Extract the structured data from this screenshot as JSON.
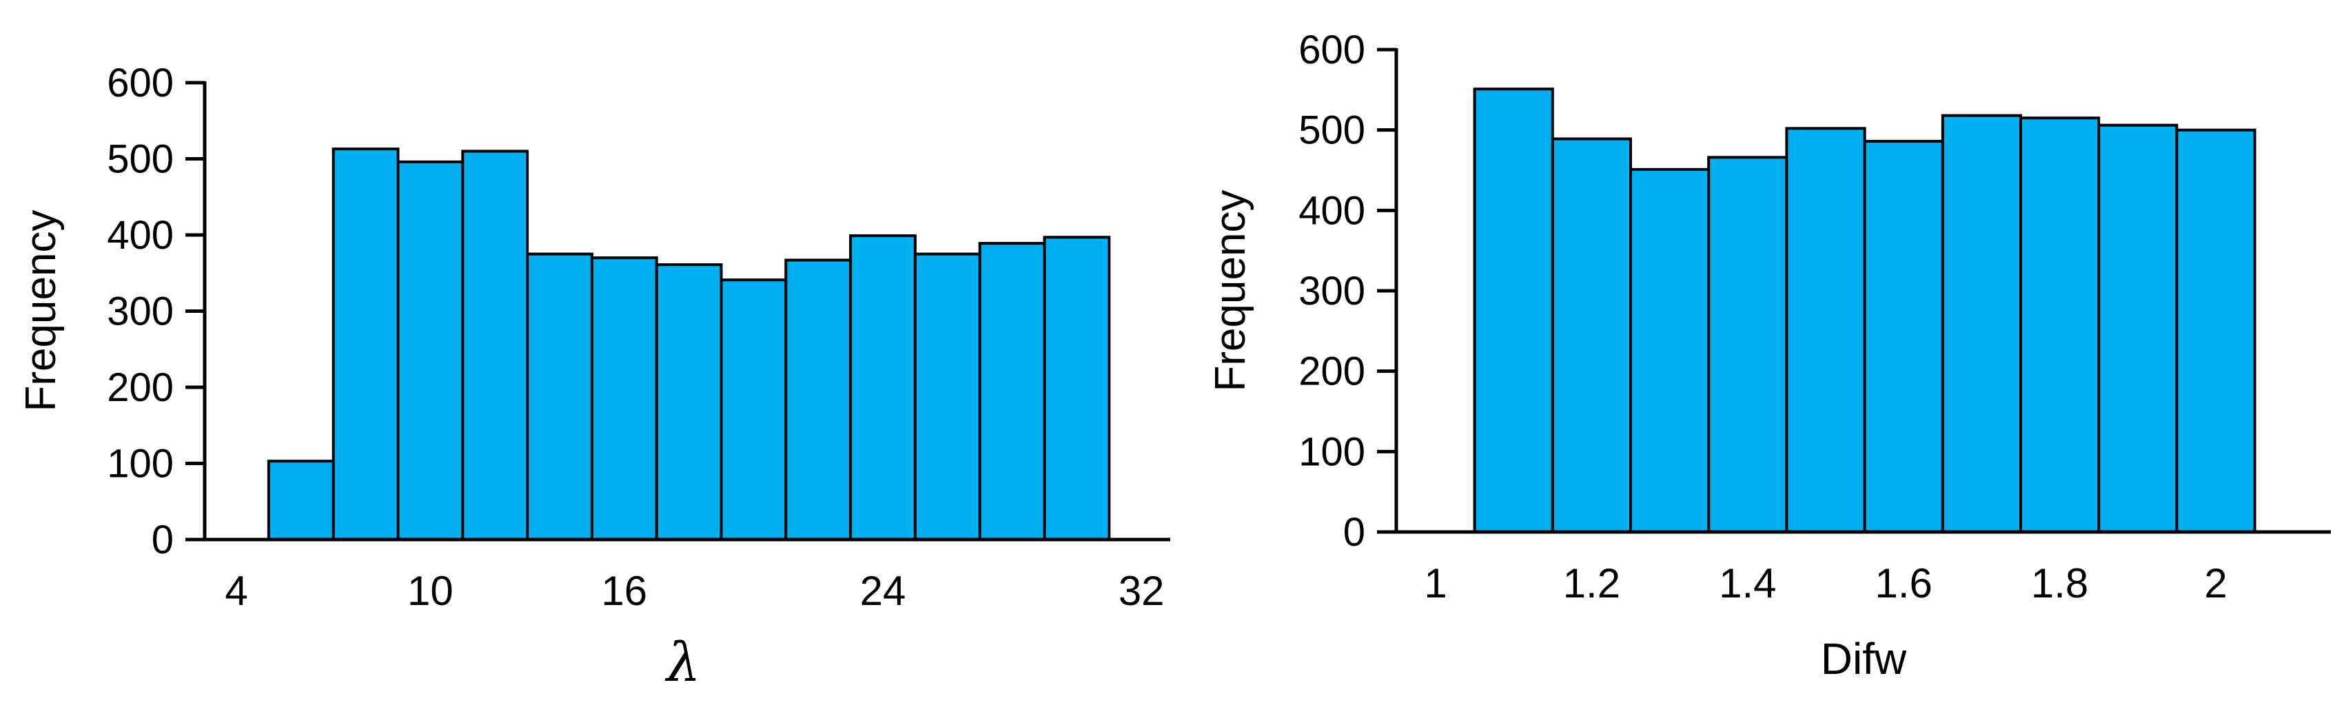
{
  "page": {
    "background": "#FFFFFF",
    "description": "Two side-by-side frequency histograms"
  },
  "chart_data": [
    {
      "type": "bar",
      "subtype": "histogram",
      "title": "",
      "xlabel": "λ",
      "ylabel": "Frequency",
      "bar_color": "#00B0F0",
      "bar_border_color": "#000000",
      "axis_color": "#000000",
      "ylim": [
        0,
        600
      ],
      "y_ticks": [
        0,
        100,
        200,
        300,
        400,
        500,
        600
      ],
      "x_ticks": [
        4,
        10,
        16,
        24,
        32
      ],
      "bin_edges": [
        5,
        7,
        9,
        11,
        13,
        15,
        17,
        19,
        21,
        23,
        25,
        27,
        29,
        31
      ],
      "values": [
        103,
        513,
        496,
        510,
        375,
        370,
        361,
        341,
        367,
        399,
        375,
        389,
        397
      ],
      "grid": false,
      "legend": "none"
    },
    {
      "type": "bar",
      "subtype": "histogram",
      "title": "",
      "xlabel": "Difw",
      "ylabel": "Frequency",
      "bar_color": "#00B0F0",
      "bar_border_color": "#000000",
      "axis_color": "#000000",
      "ylim": [
        0,
        600
      ],
      "y_ticks": [
        0,
        100,
        200,
        300,
        400,
        500,
        600
      ],
      "x_ticks": [
        1,
        1.2,
        1.4,
        1.6,
        1.8,
        2
      ],
      "bin_edges": [
        1.05,
        1.15,
        1.25,
        1.35,
        1.45,
        1.55,
        1.65,
        1.75,
        1.85,
        1.95,
        2.05
      ],
      "values": [
        551,
        489,
        451,
        466,
        502,
        486,
        518,
        515,
        506,
        500
      ],
      "grid": false,
      "legend": "none"
    }
  ]
}
